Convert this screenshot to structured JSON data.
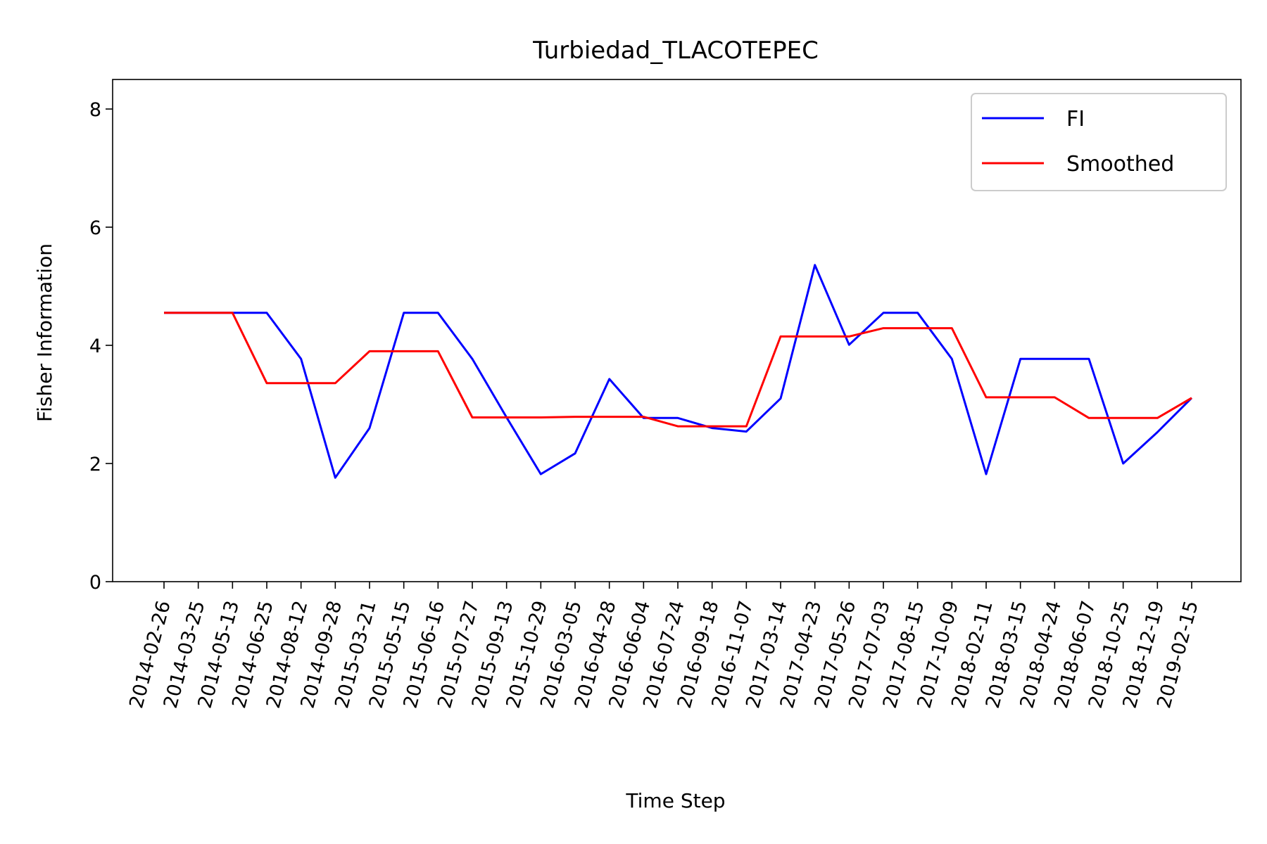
{
  "chart_data": {
    "type": "line",
    "title": "Turbiedad_TLACOTEPEC",
    "xlabel": "Time Step",
    "ylabel": "Fisher Information",
    "ylim": [
      0,
      8.5
    ],
    "yticks": [
      0,
      2,
      4,
      6,
      8
    ],
    "grid": false,
    "legend_position": "top-right",
    "x": [
      "2014-02-26",
      "2014-03-25",
      "2014-05-13",
      "2014-06-25",
      "2014-08-12",
      "2014-09-28",
      "2015-03-21",
      "2015-05-15",
      "2015-06-16",
      "2015-07-27",
      "2015-09-13",
      "2015-10-29",
      "2016-03-05",
      "2016-04-28",
      "2016-06-04",
      "2016-07-24",
      "2016-09-18",
      "2016-11-07",
      "2017-03-14",
      "2017-04-23",
      "2017-05-26",
      "2017-07-03",
      "2017-08-15",
      "2017-10-09",
      "2018-02-11",
      "2018-03-15",
      "2018-04-24",
      "2018-06-07",
      "2018-10-25",
      "2018-12-19",
      "2019-02-15"
    ],
    "series": [
      {
        "name": "FI",
        "color": "#0000ff",
        "values": [
          4.55,
          4.55,
          4.55,
          4.55,
          3.77,
          1.76,
          2.6,
          4.55,
          4.55,
          3.77,
          2.78,
          1.82,
          2.17,
          3.43,
          2.77,
          2.77,
          2.6,
          2.54,
          3.1,
          5.36,
          4.01,
          4.55,
          4.55,
          3.77,
          1.82,
          3.77,
          3.77,
          3.77,
          2.0,
          2.53,
          3.11
        ]
      },
      {
        "name": "Smoothed",
        "color": "#ff0000",
        "values": [
          4.55,
          4.55,
          4.55,
          3.36,
          3.36,
          3.36,
          3.9,
          3.9,
          3.9,
          2.78,
          2.78,
          2.78,
          2.79,
          2.79,
          2.79,
          2.63,
          2.63,
          2.63,
          4.15,
          4.15,
          4.15,
          4.29,
          4.29,
          4.29,
          3.12,
          3.12,
          3.12,
          2.77,
          2.77,
          2.77,
          3.11
        ]
      }
    ]
  }
}
